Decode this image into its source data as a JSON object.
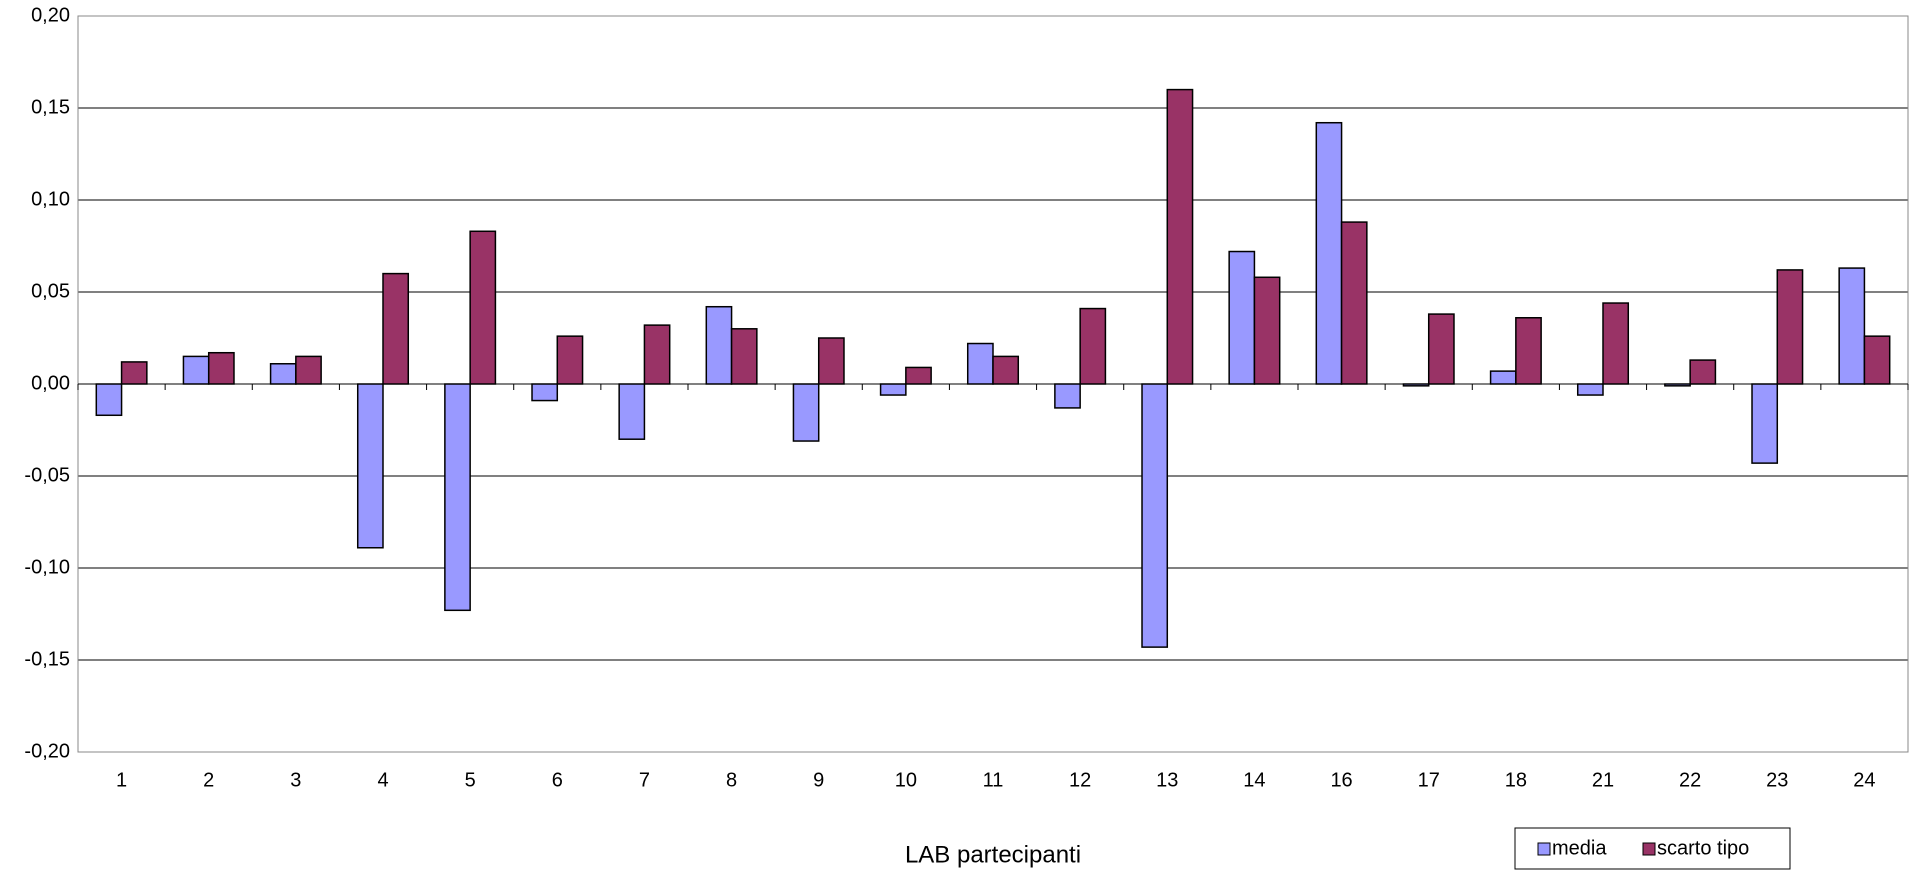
{
  "chart_data": {
    "type": "bar",
    "x_label": "LAB partecipanti",
    "categories": [
      "1",
      "2",
      "3",
      "4",
      "5",
      "6",
      "7",
      "8",
      "9",
      "10",
      "11",
      "12",
      "13",
      "14",
      "16",
      "17",
      "18",
      "21",
      "22",
      "23",
      "24"
    ],
    "series": [
      {
        "name": "media",
        "color": "#9999ff",
        "values": [
          -0.017,
          0.015,
          0.011,
          -0.089,
          -0.123,
          -0.009,
          -0.03,
          0.042,
          -0.031,
          -0.006,
          0.022,
          -0.013,
          -0.143,
          0.072,
          0.142,
          -0.001,
          0.007,
          -0.006,
          -0.001,
          -0.043,
          0.063
        ]
      },
      {
        "name": "scarto tipo",
        "color": "#993366",
        "values": [
          0.012,
          0.017,
          0.015,
          0.06,
          0.083,
          0.026,
          0.032,
          0.03,
          0.025,
          0.009,
          0.015,
          0.041,
          0.16,
          0.058,
          0.088,
          0.038,
          0.036,
          0.044,
          0.013,
          0.062,
          0.026
        ]
      }
    ],
    "ylim": [
      -0.2,
      0.2
    ],
    "yticks": [
      {
        "value": -0.2,
        "label": "-0,20"
      },
      {
        "value": -0.15,
        "label": "-0,15"
      },
      {
        "value": -0.1,
        "label": "-0,10"
      },
      {
        "value": -0.05,
        "label": "-0,05"
      },
      {
        "value": 0,
        "label": "0,00"
      },
      {
        "value": 0.05,
        "label": "0,05"
      },
      {
        "value": 0.1,
        "label": "0,10"
      },
      {
        "value": 0.15,
        "label": "0,15"
      },
      {
        "value": 0.2,
        "label": "0,20"
      }
    ],
    "grid": true,
    "legend": "bottom-right"
  }
}
